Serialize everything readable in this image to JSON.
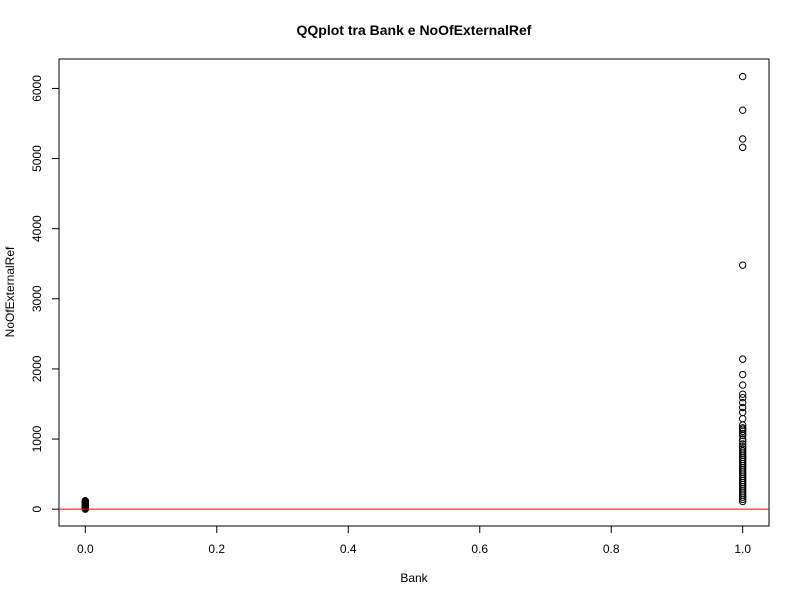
{
  "chart_data": {
    "type": "scatter",
    "title": "QQplot tra Bank e NoOfExternalRef",
    "xlabel": "Bank",
    "ylabel": "NoOfExternalRef",
    "xlim": [
      -0.04,
      1.04
    ],
    "ylim": [
      -240,
      6420
    ],
    "x_ticks": [
      0.0,
      0.2,
      0.4,
      0.6,
      0.8,
      1.0
    ],
    "x_tick_labels": [
      "0.0",
      "0.2",
      "0.4",
      "0.6",
      "0.8",
      "1.0"
    ],
    "y_ticks": [
      0,
      1000,
      2000,
      3000,
      4000,
      5000,
      6000
    ],
    "y_tick_labels": [
      "0",
      "1000",
      "2000",
      "3000",
      "4000",
      "5000",
      "6000"
    ],
    "grid": false,
    "reference_line": {
      "slope": 0,
      "intercept": 0,
      "color": "#ff0000"
    },
    "series": [
      {
        "marker": "open-circle",
        "color": "#000000",
        "points": [
          [
            0,
            0
          ],
          [
            0,
            10
          ],
          [
            0,
            20
          ],
          [
            0,
            30
          ],
          [
            0,
            40
          ],
          [
            0,
            50
          ],
          [
            0,
            60
          ],
          [
            0,
            70
          ],
          [
            0,
            80
          ],
          [
            0,
            90
          ],
          [
            0,
            100
          ],
          [
            0,
            110
          ],
          [
            0,
            120
          ],
          [
            1,
            110
          ],
          [
            1,
            140
          ],
          [
            1,
            170
          ],
          [
            1,
            200
          ],
          [
            1,
            230
          ],
          [
            1,
            260
          ],
          [
            1,
            290
          ],
          [
            1,
            320
          ],
          [
            1,
            350
          ],
          [
            1,
            380
          ],
          [
            1,
            410
          ],
          [
            1,
            440
          ],
          [
            1,
            470
          ],
          [
            1,
            500
          ],
          [
            1,
            530
          ],
          [
            1,
            560
          ],
          [
            1,
            590
          ],
          [
            1,
            620
          ],
          [
            1,
            650
          ],
          [
            1,
            680
          ],
          [
            1,
            710
          ],
          [
            1,
            740
          ],
          [
            1,
            770
          ],
          [
            1,
            800
          ],
          [
            1,
            830
          ],
          [
            1,
            860
          ],
          [
            1,
            890
          ],
          [
            1,
            930
          ],
          [
            1,
            970
          ],
          [
            1,
            1000
          ],
          [
            1,
            1050
          ],
          [
            1,
            1080
          ],
          [
            1,
            1110
          ],
          [
            1,
            1140
          ],
          [
            1,
            1160
          ],
          [
            1,
            1200
          ],
          [
            1,
            1290
          ],
          [
            1,
            1380
          ],
          [
            1,
            1450
          ],
          [
            1,
            1520
          ],
          [
            1,
            1590
          ],
          [
            1,
            1640
          ],
          [
            1,
            1770
          ],
          [
            1,
            1920
          ],
          [
            1,
            2140
          ],
          [
            1,
            3480
          ],
          [
            1,
            5160
          ],
          [
            1,
            5280
          ],
          [
            1,
            5690
          ],
          [
            1,
            6170
          ]
        ]
      }
    ]
  }
}
